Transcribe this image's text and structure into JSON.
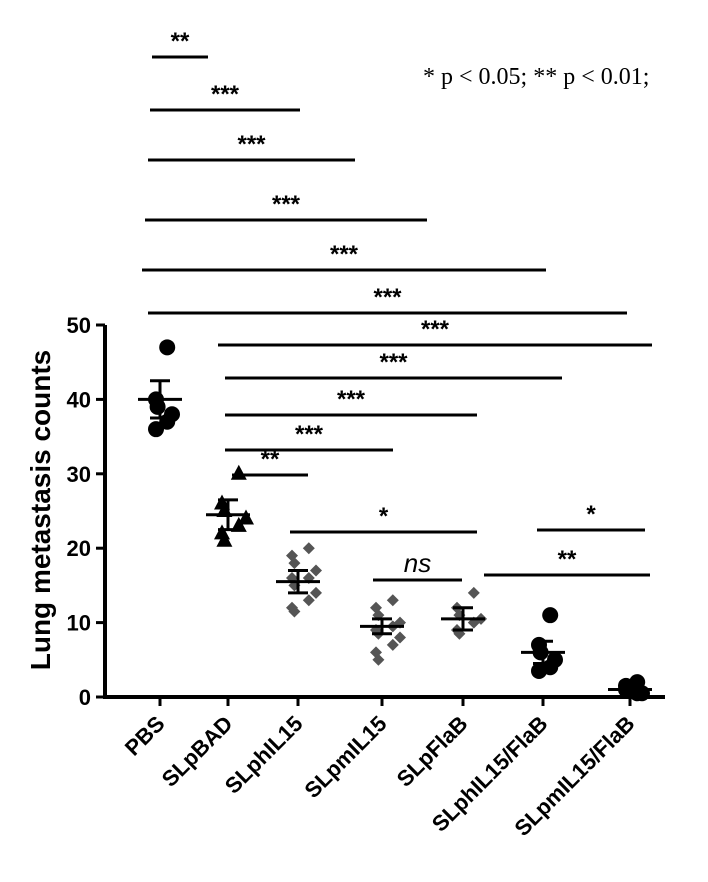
{
  "note": "* p < 0.05; ** p < 0.01;",
  "chart_data": {
    "type": "scatter",
    "ylabel": "Lung metastasis counts",
    "ylim": [
      0,
      50
    ],
    "yticks": [
      0,
      10,
      20,
      30,
      40,
      50
    ],
    "categories": [
      "PBS",
      "SLpBAD",
      "SLphIL15",
      "SLpmIL15",
      "SLpFlaB",
      "SLphIL15/FlaB",
      "SLpmIL15/FlaB"
    ],
    "groups": [
      {
        "category": "PBS",
        "marker": "circle",
        "mean": 40,
        "sem_high": 42.5,
        "sem_low": 37.5,
        "points": [
          47,
          40,
          39,
          38,
          37,
          36
        ]
      },
      {
        "category": "SLpBAD",
        "marker": "triangle",
        "mean": 24.5,
        "sem_high": 26.5,
        "sem_low": 22.5,
        "points": [
          30,
          26,
          25,
          24,
          23,
          22,
          21
        ]
      },
      {
        "category": "SLphIL15",
        "marker": "diamond",
        "mean": 15.5,
        "sem_high": 17,
        "sem_low": 14,
        "points": [
          20,
          19,
          18,
          17,
          16,
          16,
          15,
          14,
          13,
          12,
          11.5
        ]
      },
      {
        "category": "SLpmIL15",
        "marker": "diamond",
        "mean": 9.5,
        "sem_high": 10.5,
        "sem_low": 8.5,
        "points": [
          13,
          12,
          11,
          10,
          9.5,
          9,
          8.5,
          8,
          7,
          6,
          5
        ]
      },
      {
        "category": "SLpFlaB",
        "marker": "diamond",
        "mean": 10.5,
        "sem_high": 12,
        "sem_low": 9,
        "points": [
          14,
          12,
          11,
          10.5,
          10,
          9,
          8.5
        ]
      },
      {
        "category": "SLphIL15/FlaB",
        "marker": "circle",
        "mean": 6,
        "sem_high": 7.5,
        "sem_low": 4.5,
        "points": [
          11,
          7,
          6,
          5,
          4,
          3.5
        ]
      },
      {
        "category": "SLpmIL15/FlaB",
        "marker": "circle",
        "mean": 1,
        "sem_high": 1.5,
        "sem_low": 0.5,
        "points": [
          2,
          1.5,
          1,
          0.5,
          0.5,
          1
        ]
      }
    ],
    "significance": [
      {
        "from": "PBS",
        "to": "SLpBAD",
        "label": "**"
      },
      {
        "from": "PBS",
        "to": "SLphIL15",
        "label": "***"
      },
      {
        "from": "PBS",
        "to": "SLpmIL15",
        "label": "***"
      },
      {
        "from": "PBS",
        "to": "SLpFlaB",
        "label": "***"
      },
      {
        "from": "PBS",
        "to": "SLphIL15/FlaB",
        "label": "***"
      },
      {
        "from": "PBS",
        "to": "SLpmIL15/FlaB",
        "label": "***"
      },
      {
        "from": "SLpBAD",
        "to": "SLpmIL15/FlaB",
        "label": "***"
      },
      {
        "from": "SLpBAD",
        "to": "SLphIL15/FlaB",
        "label": "***"
      },
      {
        "from": "SLpBAD",
        "to": "SLpFlaB",
        "label": "***"
      },
      {
        "from": "SLpBAD",
        "to": "SLpmIL15",
        "label": "***"
      },
      {
        "from": "SLpBAD",
        "to": "SLphIL15",
        "label": "**"
      },
      {
        "from": "SLphIL15",
        "to": "SLpFlaB",
        "label": "*"
      },
      {
        "from": "SLpmIL15",
        "to": "SLpFlaB",
        "label": "ns"
      },
      {
        "from": "SLpFlaB",
        "to": "SLpmIL15/FlaB",
        "label": "**"
      },
      {
        "from": "SLphIL15/FlaB",
        "to": "SLpmIL15/FlaB",
        "label": "*"
      }
    ]
  }
}
